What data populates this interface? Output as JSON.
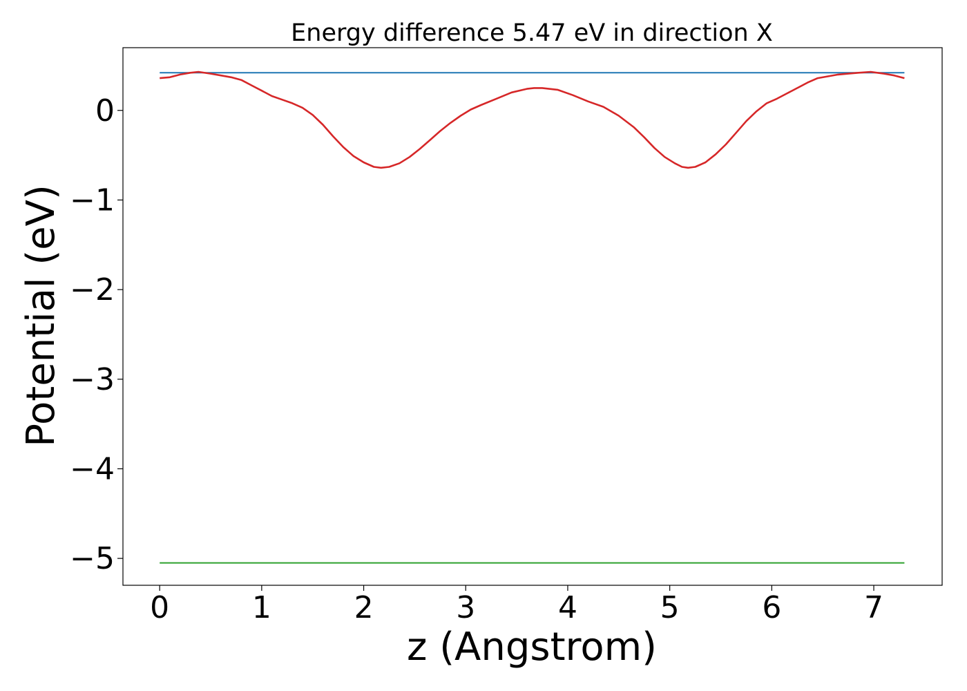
{
  "chart_data": {
    "type": "line",
    "title": "Energy difference 5.47 eV in direction X",
    "xlabel": "z (Angstrom)",
    "ylabel": "Potential (eV)",
    "xlim": [
      -0.36,
      7.67
    ],
    "ylim": [
      -5.3,
      0.7
    ],
    "xticks": [
      "0",
      "1",
      "2",
      "3",
      "4",
      "5",
      "6",
      "7"
    ],
    "xtick_values": [
      0,
      1,
      2,
      3,
      4,
      5,
      6,
      7
    ],
    "yticks": [
      "0",
      "−1",
      "−2",
      "−3",
      "−4",
      "−5"
    ],
    "ytick_values": [
      0,
      -1,
      -2,
      -3,
      -4,
      -5
    ],
    "grid": false,
    "series": [
      {
        "color": "#1f77b4",
        "x": [
          0,
          7.3
        ],
        "y": [
          0.42,
          0.42
        ]
      },
      {
        "color": "#2ca02c",
        "x": [
          0,
          7.3
        ],
        "y": [
          -5.05,
          -5.05
        ]
      },
      {
        "color": "#d62728",
        "x": [
          0,
          0.1,
          0.2,
          0.3,
          0.38,
          0.5,
          0.6,
          0.7,
          0.8,
          0.9,
          1.0,
          1.1,
          1.2,
          1.3,
          1.4,
          1.5,
          1.6,
          1.7,
          1.8,
          1.9,
          2.0,
          2.1,
          2.17,
          2.25,
          2.35,
          2.45,
          2.55,
          2.65,
          2.75,
          2.85,
          2.95,
          3.05,
          3.15,
          3.3,
          3.45,
          3.6,
          3.67,
          3.75,
          3.9,
          4.05,
          4.2,
          4.35,
          4.5,
          4.65,
          4.75,
          4.85,
          4.95,
          5.05,
          5.12,
          5.18,
          5.25,
          5.35,
          5.45,
          5.55,
          5.65,
          5.75,
          5.85,
          5.95,
          6.05,
          6.15,
          6.25,
          6.35,
          6.45,
          6.55,
          6.65,
          6.75,
          6.85,
          6.97,
          7.1,
          7.2,
          7.3
        ],
        "y": [
          0.36,
          0.37,
          0.4,
          0.42,
          0.43,
          0.41,
          0.39,
          0.37,
          0.34,
          0.28,
          0.22,
          0.16,
          0.12,
          0.08,
          0.03,
          -0.05,
          -0.16,
          -0.29,
          -0.41,
          -0.51,
          -0.58,
          -0.63,
          -0.64,
          -0.63,
          -0.59,
          -0.52,
          -0.43,
          -0.33,
          -0.23,
          -0.14,
          -0.06,
          0.01,
          0.06,
          0.13,
          0.2,
          0.24,
          0.25,
          0.25,
          0.23,
          0.17,
          0.1,
          0.04,
          -0.06,
          -0.19,
          -0.3,
          -0.42,
          -0.52,
          -0.59,
          -0.63,
          -0.64,
          -0.63,
          -0.58,
          -0.49,
          -0.38,
          -0.25,
          -0.12,
          -0.01,
          0.08,
          0.13,
          0.19,
          0.25,
          0.31,
          0.36,
          0.38,
          0.4,
          0.41,
          0.42,
          0.43,
          0.41,
          0.39,
          0.36
        ]
      }
    ]
  }
}
